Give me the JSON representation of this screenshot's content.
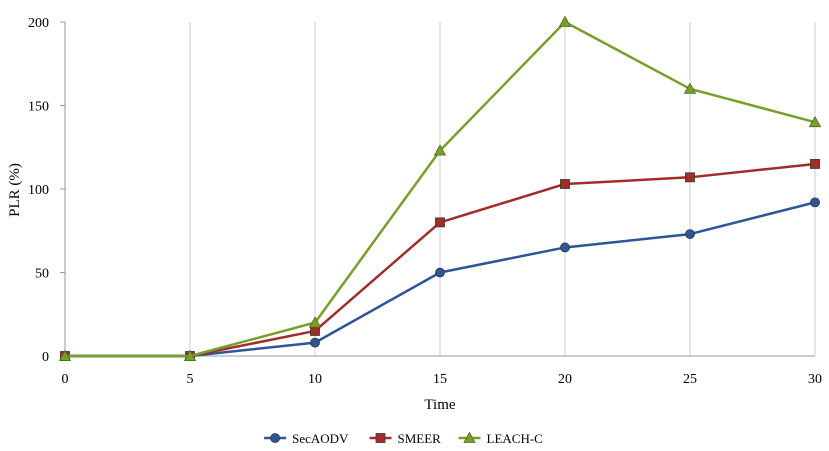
{
  "chart_data": {
    "type": "line",
    "title": "",
    "xlabel": "Time",
    "ylabel": "PLR (%)",
    "x": [
      0,
      5,
      10,
      15,
      20,
      25,
      30
    ],
    "xlim": [
      0,
      30
    ],
    "ylim": [
      0,
      200
    ],
    "xticks": [
      "0",
      "5",
      "10",
      "15",
      "20",
      "25",
      "30"
    ],
    "yticks": [
      "0",
      "50",
      "100",
      "150",
      "200"
    ],
    "grid": "vertical",
    "legend": "bottom",
    "series": [
      {
        "name": "SecAODV",
        "color": "#2E5597",
        "marker": "circle",
        "values": [
          0,
          0,
          8,
          50,
          65,
          73,
          92
        ]
      },
      {
        "name": "SMEER",
        "color": "#A12D2B",
        "marker": "square",
        "values": [
          0,
          0,
          15,
          80,
          103,
          107,
          115
        ]
      },
      {
        "name": "LEACH-C",
        "color": "#77A02A",
        "marker": "triangle",
        "values": [
          0,
          0,
          20,
          123,
          200,
          160,
          140
        ]
      }
    ]
  }
}
